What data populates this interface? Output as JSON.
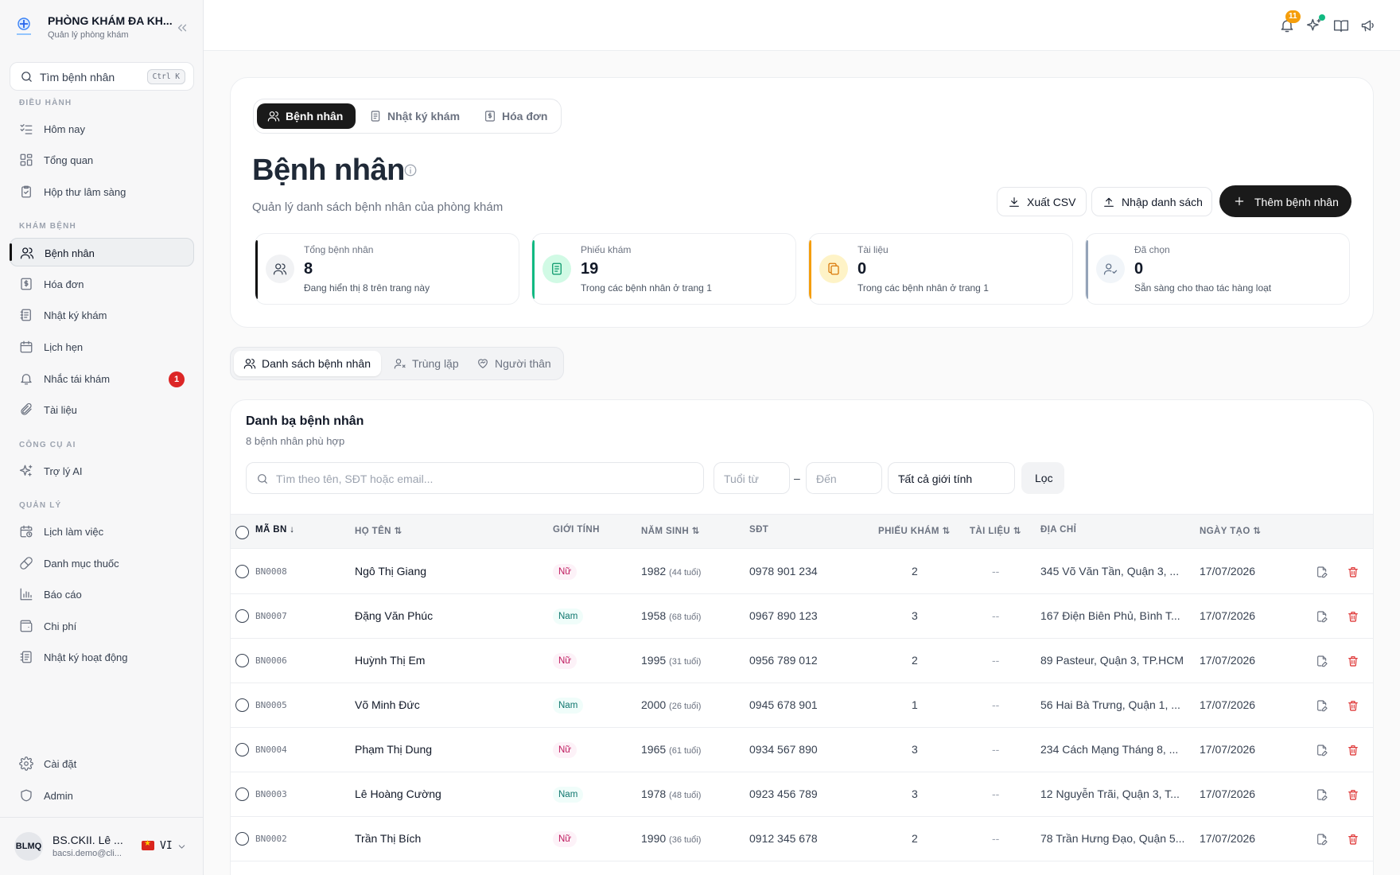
{
  "app": {
    "name": "PHÒNG KHÁM ĐA KH...",
    "subtitle": "Quản lý phòng khám"
  },
  "sidebar": {
    "search_label": "Tìm bệnh nhân",
    "search_shortcut": "Ctrl K",
    "sections": [
      {
        "label": "ĐIỀU HÀNH",
        "items": [
          {
            "label": "Hôm nay",
            "icon": "list-checks-icon"
          },
          {
            "label": "Tổng quan",
            "icon": "dashboard-icon"
          },
          {
            "label": "Hộp thư lâm sàng",
            "icon": "clipboard-check-icon"
          }
        ]
      },
      {
        "label": "KHÁM BỆNH",
        "items": [
          {
            "label": "Bệnh nhân",
            "icon": "users-icon",
            "active": true
          },
          {
            "label": "Hóa đơn",
            "icon": "receipt-icon"
          },
          {
            "label": "Nhật ký khám",
            "icon": "notebook-icon"
          },
          {
            "label": "Lịch hẹn",
            "icon": "calendar-icon"
          },
          {
            "label": "Nhắc tái khám",
            "icon": "bell-icon",
            "badge": "1"
          },
          {
            "label": "Tài liệu",
            "icon": "paperclip-icon"
          }
        ]
      },
      {
        "label": "CÔNG CỤ AI",
        "items": [
          {
            "label": "Trợ lý AI",
            "icon": "sparkles-icon"
          }
        ]
      },
      {
        "label": "QUẢN LÝ",
        "items": [
          {
            "label": "Lịch làm việc",
            "icon": "calendar-clock-icon"
          },
          {
            "label": "Danh mục thuốc",
            "icon": "pill-icon"
          },
          {
            "label": "Báo cáo",
            "icon": "bar-chart-icon"
          },
          {
            "label": "Chi phí",
            "icon": "wallet-icon"
          },
          {
            "label": "Nhật ký hoạt động",
            "icon": "activity-log-icon"
          }
        ]
      }
    ],
    "bottom_items": [
      {
        "label": "Cài đặt",
        "icon": "gear-icon"
      },
      {
        "label": "Admin",
        "icon": "shield-icon"
      }
    ],
    "user": {
      "initials": "BLMQ",
      "name": "BS.CKII. Lê ...",
      "email": "bacsi.demo@cli...",
      "lang": "VI"
    }
  },
  "topbar": {
    "notification_count": "11"
  },
  "page": {
    "tabs": [
      {
        "label": "Bệnh nhân",
        "icon": "users-icon",
        "active": true
      },
      {
        "label": "Nhật ký khám",
        "icon": "notebook-icon"
      },
      {
        "label": "Hóa đơn",
        "icon": "receipt-icon"
      }
    ],
    "title": "Bệnh nhân",
    "subtitle": "Quản lý danh sách bệnh nhân của phòng khám",
    "actions": {
      "export": "Xuất CSV",
      "import": "Nhập danh sách",
      "add": "Thêm bệnh nhân"
    },
    "stats": [
      {
        "title": "Tổng bệnh nhân",
        "value": "8",
        "desc": "Đang hiển thị 8 trên trang này",
        "color": "#111111",
        "icon": "users-icon"
      },
      {
        "title": "Phiếu khám",
        "value": "19",
        "desc": "Trong các bệnh nhân ở trang 1",
        "color": "#10b981",
        "icon": "document-icon"
      },
      {
        "title": "Tài liệu",
        "value": "0",
        "desc": "Trong các bệnh nhân ở trang 1",
        "color": "#f59e0b",
        "icon": "files-icon"
      },
      {
        "title": "Đã chọn",
        "value": "0",
        "desc": "Sẵn sàng cho thao tác hàng loạt",
        "color": "#94a3b8",
        "icon": "user-check-icon"
      }
    ]
  },
  "subtabs": [
    {
      "label": "Danh sách bệnh nhân",
      "icon": "users-icon",
      "active": true
    },
    {
      "label": "Trùng lặp",
      "icon": "user-x-icon"
    },
    {
      "label": "Người thân",
      "icon": "heart-handshake-icon"
    }
  ],
  "directory": {
    "title": "Danh bạ bệnh nhân",
    "count_text": "8 bệnh nhân phù hợp",
    "filters": {
      "search_placeholder": "Tìm theo tên, SĐT hoặc email...",
      "age_from": "Tuổi từ",
      "dash": "–",
      "age_to": "Đến",
      "gender": "Tất cả giới tính",
      "filter_button": "Lọc"
    },
    "columns": {
      "code": "MÃ BN",
      "name": "HỌ TÊN",
      "gender": "GIỚI TÍNH",
      "birth_year": "NĂM SINH",
      "phone": "SĐT",
      "visits": "PHIẾU KHÁM",
      "documents": "TÀI LIỆU",
      "address": "ĐỊA CHỈ",
      "created": "NGÀY TẠO"
    },
    "rows": [
      {
        "code": "BN0008",
        "name": "Ngô Thị Giang",
        "gender": "Nữ",
        "gender_key": "f",
        "birth_year": "1982",
        "age": "(44 tuổi)",
        "phone": "0978 901 234",
        "visits": "2",
        "documents": "--",
        "address": "345 Võ Văn Tần, Quận 3, ...",
        "created": "17/07/2026"
      },
      {
        "code": "BN0007",
        "name": "Đặng Văn Phúc",
        "gender": "Nam",
        "gender_key": "m",
        "birth_year": "1958",
        "age": "(68 tuổi)",
        "phone": "0967 890 123",
        "visits": "3",
        "documents": "--",
        "address": "167 Điện Biên Phủ, Bình T...",
        "created": "17/07/2026"
      },
      {
        "code": "BN0006",
        "name": "Huỳnh Thị Em",
        "gender": "Nữ",
        "gender_key": "f",
        "birth_year": "1995",
        "age": "(31 tuổi)",
        "phone": "0956 789 012",
        "visits": "2",
        "documents": "--",
        "address": "89 Pasteur, Quận 3, TP.HCM",
        "created": "17/07/2026"
      },
      {
        "code": "BN0005",
        "name": "Võ Minh Đức",
        "gender": "Nam",
        "gender_key": "m",
        "birth_year": "2000",
        "age": "(26 tuổi)",
        "phone": "0945 678 901",
        "visits": "1",
        "documents": "--",
        "address": "56 Hai Bà Trưng, Quận 1, ...",
        "created": "17/07/2026"
      },
      {
        "code": "BN0004",
        "name": "Phạm Thị Dung",
        "gender": "Nữ",
        "gender_key": "f",
        "birth_year": "1965",
        "age": "(61 tuổi)",
        "phone": "0934 567 890",
        "visits": "3",
        "documents": "--",
        "address": "234 Cách Mạng Tháng 8, ...",
        "created": "17/07/2026"
      },
      {
        "code": "BN0003",
        "name": "Lê Hoàng Cường",
        "gender": "Nam",
        "gender_key": "m",
        "birth_year": "1978",
        "age": "(48 tuổi)",
        "phone": "0923 456 789",
        "visits": "3",
        "documents": "--",
        "address": "12 Nguyễn Trãi, Quận 3, T...",
        "created": "17/07/2026"
      },
      {
        "code": "BN0002",
        "name": "Trần Thị Bích",
        "gender": "Nữ",
        "gender_key": "f",
        "birth_year": "1990",
        "age": "(36 tuổi)",
        "phone": "0912 345 678",
        "visits": "2",
        "documents": "--",
        "address": "78 Trần Hưng Đạo, Quận 5...",
        "created": "17/07/2026"
      }
    ]
  }
}
